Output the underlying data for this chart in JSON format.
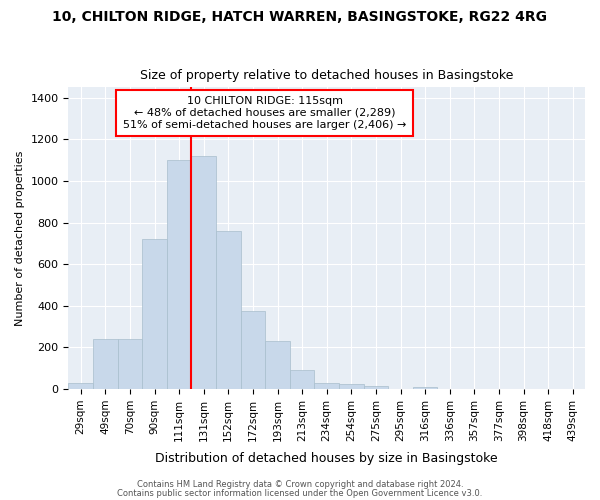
{
  "title1": "10, CHILTON RIDGE, HATCH WARREN, BASINGSTOKE, RG22 4RG",
  "title2": "Size of property relative to detached houses in Basingstoke",
  "xlabel": "Distribution of detached houses by size in Basingstoke",
  "ylabel": "Number of detached properties",
  "bar_color": "#c8d8ea",
  "bar_edge_color": "#a8becc",
  "bg_color": "#e8eef5",
  "categories": [
    "29sqm",
    "49sqm",
    "70sqm",
    "90sqm",
    "111sqm",
    "131sqm",
    "152sqm",
    "172sqm",
    "193sqm",
    "213sqm",
    "234sqm",
    "254sqm",
    "275sqm",
    "295sqm",
    "316sqm",
    "336sqm",
    "357sqm",
    "377sqm",
    "398sqm",
    "418sqm",
    "439sqm"
  ],
  "values": [
    28,
    240,
    240,
    720,
    1100,
    1120,
    760,
    375,
    230,
    90,
    30,
    22,
    15,
    0,
    10,
    0,
    0,
    0,
    0,
    0,
    0
  ],
  "red_line_x": 4.5,
  "annotation_line1": "10 CHILTON RIDGE: 115sqm",
  "annotation_line2": "← 48% of detached houses are smaller (2,289)",
  "annotation_line3": "51% of semi-detached houses are larger (2,406) →",
  "footer1": "Contains HM Land Registry data © Crown copyright and database right 2024.",
  "footer2": "Contains public sector information licensed under the Open Government Licence v3.0.",
  "ylim": [
    0,
    1450
  ],
  "yticks": [
    0,
    200,
    400,
    600,
    800,
    1000,
    1200,
    1400
  ]
}
